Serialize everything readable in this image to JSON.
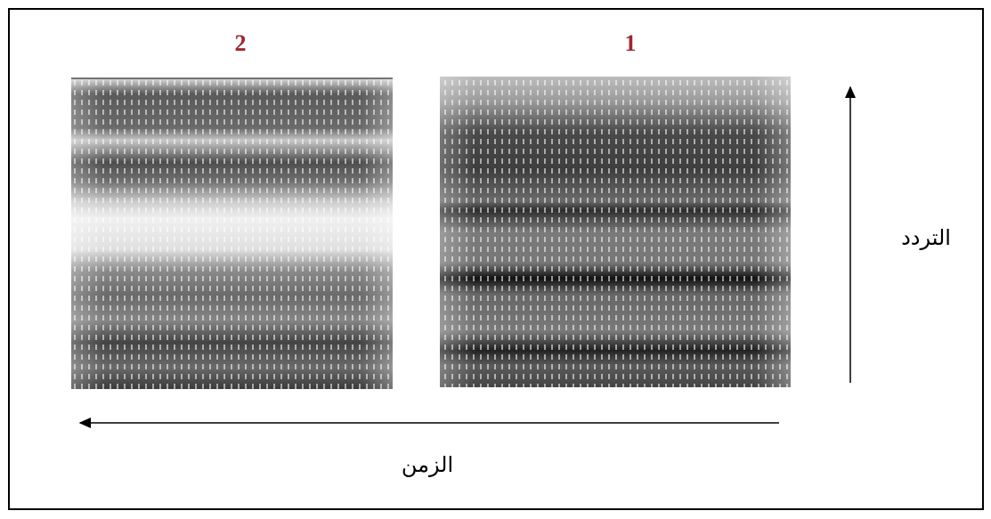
{
  "panels": [
    {
      "label": "2"
    },
    {
      "label": "1"
    }
  ],
  "axes": {
    "frequency": "التردد",
    "time": "الزمن"
  }
}
